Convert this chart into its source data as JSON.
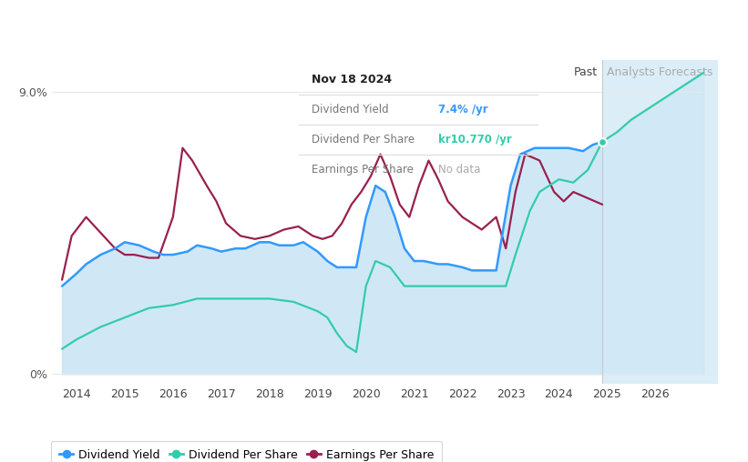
{
  "tooltip_date": "Nov 18 2024",
  "tooltip_yield": "7.4%",
  "tooltip_dps": "kr10.770",
  "tooltip_eps": "No data",
  "past_label": "Past",
  "forecast_label": "Analysts Forecasts",
  "past_boundary_year": 2024.9,
  "colors": {
    "dividend_yield": "#3399ff",
    "dividend_per_share": "#33ccaa",
    "earnings_per_share": "#99204f",
    "fill_past": "#c8e4f5",
    "fill_forecast": "#d8edf8",
    "bg": "#ffffff",
    "grid": "#e8e8e8",
    "tooltip_border": "#cccccc",
    "tooltip_bg": "#ffffff"
  },
  "x_ticks": [
    2014,
    2015,
    2016,
    2017,
    2018,
    2019,
    2020,
    2021,
    2022,
    2023,
    2024,
    2025,
    2026
  ],
  "xlim": [
    2013.5,
    2027.3
  ],
  "ylim": [
    -0.003,
    0.1
  ],
  "dividend_yield_past": {
    "x": [
      2013.7,
      2014.0,
      2014.2,
      2014.5,
      2014.8,
      2015.0,
      2015.3,
      2015.6,
      2015.8,
      2016.0,
      2016.3,
      2016.5,
      2016.8,
      2017.0,
      2017.3,
      2017.5,
      2017.8,
      2018.0,
      2018.2,
      2018.5,
      2018.7,
      2019.0,
      2019.2,
      2019.4,
      2019.6,
      2019.8,
      2020.0,
      2020.2,
      2020.4,
      2020.6,
      2020.8,
      2021.0,
      2021.2,
      2021.5,
      2021.7,
      2022.0,
      2022.2,
      2022.5,
      2022.7,
      2023.0,
      2023.2,
      2023.5,
      2023.7,
      2024.0,
      2024.2,
      2024.5,
      2024.7,
      2024.9
    ],
    "y": [
      0.028,
      0.032,
      0.035,
      0.038,
      0.04,
      0.042,
      0.041,
      0.039,
      0.038,
      0.038,
      0.039,
      0.041,
      0.04,
      0.039,
      0.04,
      0.04,
      0.042,
      0.042,
      0.041,
      0.041,
      0.042,
      0.039,
      0.036,
      0.034,
      0.034,
      0.034,
      0.05,
      0.06,
      0.058,
      0.05,
      0.04,
      0.036,
      0.036,
      0.035,
      0.035,
      0.034,
      0.033,
      0.033,
      0.033,
      0.06,
      0.07,
      0.072,
      0.072,
      0.072,
      0.072,
      0.071,
      0.073,
      0.074
    ]
  },
  "dividend_per_share_all": {
    "x": [
      2013.7,
      2014.0,
      2014.5,
      2015.0,
      2015.5,
      2016.0,
      2016.5,
      2017.0,
      2017.5,
      2018.0,
      2018.5,
      2019.0,
      2019.2,
      2019.4,
      2019.6,
      2019.8,
      2020.0,
      2020.2,
      2020.5,
      2020.8,
      2021.0,
      2021.3,
      2021.6,
      2022.0,
      2022.3,
      2022.6,
      2022.9,
      2023.1,
      2023.4,
      2023.6,
      2024.0,
      2024.3,
      2024.6,
      2024.9,
      2025.2,
      2025.5,
      2026.0,
      2026.5,
      2027.0
    ],
    "y": [
      0.008,
      0.011,
      0.015,
      0.018,
      0.021,
      0.022,
      0.024,
      0.024,
      0.024,
      0.024,
      0.023,
      0.02,
      0.018,
      0.013,
      0.009,
      0.007,
      0.028,
      0.036,
      0.034,
      0.028,
      0.028,
      0.028,
      0.028,
      0.028,
      0.028,
      0.028,
      0.028,
      0.038,
      0.052,
      0.058,
      0.062,
      0.061,
      0.065,
      0.074,
      0.077,
      0.081,
      0.086,
      0.091,
      0.096
    ]
  },
  "earnings_per_share_past": {
    "x": [
      2013.7,
      2013.9,
      2014.2,
      2014.5,
      2014.8,
      2015.0,
      2015.2,
      2015.5,
      2015.7,
      2016.0,
      2016.2,
      2016.4,
      2016.7,
      2016.9,
      2017.1,
      2017.4,
      2017.7,
      2018.0,
      2018.3,
      2018.6,
      2018.9,
      2019.1,
      2019.3,
      2019.5,
      2019.7,
      2019.9,
      2020.1,
      2020.3,
      2020.5,
      2020.7,
      2020.9,
      2021.1,
      2021.3,
      2021.5,
      2021.7,
      2022.0,
      2022.2,
      2022.4,
      2022.7,
      2022.9,
      2023.1,
      2023.3,
      2023.6,
      2023.9,
      2024.1,
      2024.3,
      2024.6,
      2024.9
    ],
    "y": [
      0.03,
      0.044,
      0.05,
      0.045,
      0.04,
      0.038,
      0.038,
      0.037,
      0.037,
      0.05,
      0.072,
      0.068,
      0.06,
      0.055,
      0.048,
      0.044,
      0.043,
      0.044,
      0.046,
      0.047,
      0.044,
      0.043,
      0.044,
      0.048,
      0.054,
      0.058,
      0.063,
      0.07,
      0.063,
      0.054,
      0.05,
      0.06,
      0.068,
      0.062,
      0.055,
      0.05,
      0.048,
      0.046,
      0.05,
      0.04,
      0.058,
      0.07,
      0.068,
      0.058,
      0.055,
      0.058,
      0.056,
      0.054
    ]
  },
  "legend": [
    {
      "label": "Dividend Yield",
      "color": "#3399ff"
    },
    {
      "label": "Dividend Per Share",
      "color": "#33ccaa"
    },
    {
      "label": "Earnings Per Share",
      "color": "#99204f"
    }
  ]
}
